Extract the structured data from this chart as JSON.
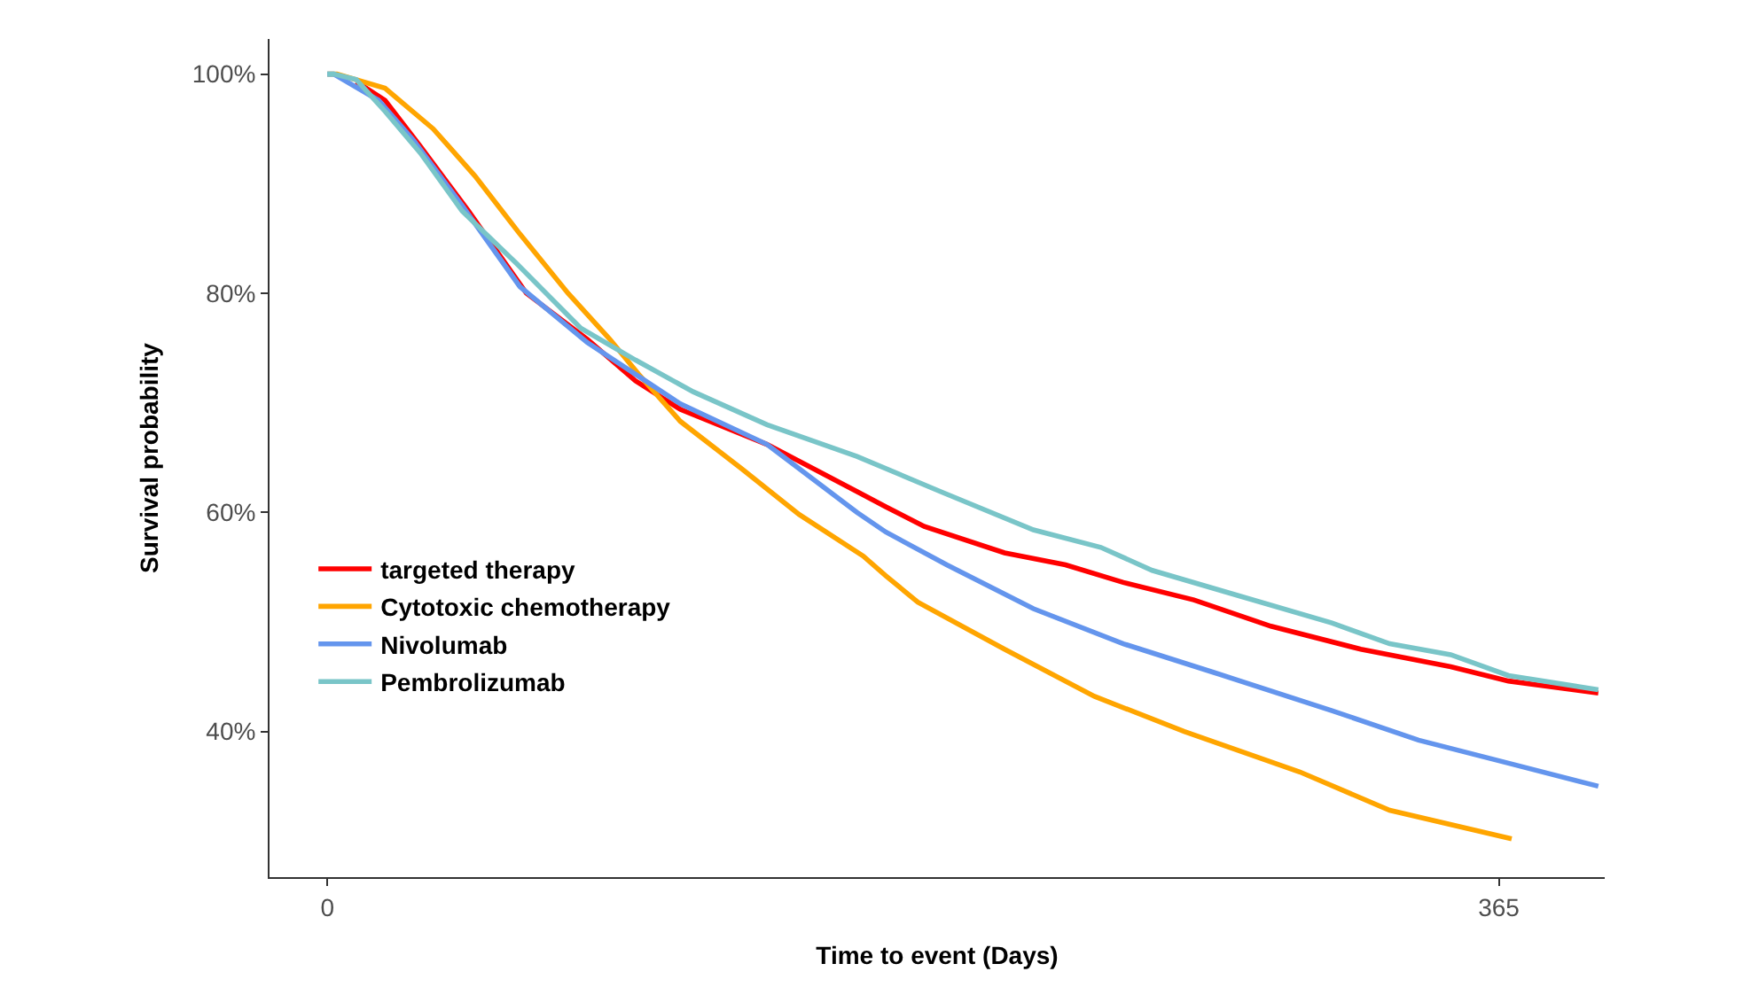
{
  "chart_data": {
    "type": "line",
    "xlabel": "Time to event (Days)",
    "ylabel": "Survival probability",
    "xlim": [
      -18,
      398
    ],
    "xticks": [
      0,
      365
    ],
    "ylim": [
      26.7,
      103.2
    ],
    "yticks": [
      {
        "value": 40,
        "label": "40%"
      },
      {
        "value": 60,
        "label": "60%"
      },
      {
        "value": 80,
        "label": "80%"
      },
      {
        "value": 100,
        "label": "100%"
      }
    ],
    "legend": "bottom left",
    "marker": "none",
    "line_style": "solid",
    "series": [
      {
        "name": "targeted therapy",
        "color": "#ff0000",
        "x": [
          9,
          18,
          29,
          44,
          62,
          81,
          96,
          110,
          137,
          165,
          174,
          186,
          211,
          230,
          248,
          270,
          294,
          322,
          350,
          368,
          396
        ],
        "values": [
          99.3,
          97.6,
          93.4,
          87.5,
          80.0,
          75.8,
          72.0,
          69.4,
          66.2,
          61.9,
          60.5,
          58.7,
          56.3,
          55.2,
          53.6,
          52.0,
          49.6,
          47.5,
          45.9,
          44.6,
          43.5
        ]
      },
      {
        "name": "Cytotoxic chemotherapy",
        "color": "#ffa500",
        "x": [
          0,
          3,
          18,
          33,
          46,
          60,
          75,
          88,
          97,
          110,
          129,
          147,
          167,
          174,
          184,
          211,
          239,
          267,
          303,
          331,
          369
        ],
        "values": [
          100,
          100,
          98.7,
          95.0,
          90.7,
          85.4,
          80.0,
          75.8,
          72.6,
          68.3,
          64.0,
          59.8,
          56.0,
          54.2,
          51.8,
          47.5,
          43.2,
          40.0,
          36.3,
          32.8,
          30.2
        ]
      },
      {
        "name": "Nivolumab",
        "color": "#6495ed",
        "x": [
          0,
          2,
          16,
          27,
          42,
          60,
          81,
          96,
          110,
          137,
          165,
          174,
          193,
          220,
          248,
          276,
          313,
          340,
          368,
          396
        ],
        "values": [
          100,
          100,
          97.6,
          93.9,
          88.0,
          80.6,
          75.5,
          72.6,
          69.9,
          66.2,
          60.0,
          58.2,
          55.2,
          51.2,
          48.0,
          45.4,
          41.9,
          39.2,
          37.1,
          35.0
        ]
      },
      {
        "name": "Pembrolizumab",
        "color": "#79c5c8",
        "x": [
          0,
          2,
          9,
          18,
          29,
          42,
          59,
          79,
          96,
          114,
          137,
          165,
          191,
          220,
          241,
          257,
          285,
          313,
          331,
          350,
          368,
          396
        ],
        "values": [
          100,
          100,
          99.5,
          96.6,
          92.8,
          87.5,
          82.7,
          76.8,
          73.9,
          71.0,
          68.0,
          65.1,
          61.9,
          58.4,
          56.8,
          54.7,
          52.3,
          49.9,
          48.0,
          47.0,
          45.1,
          43.8
        ]
      }
    ]
  }
}
